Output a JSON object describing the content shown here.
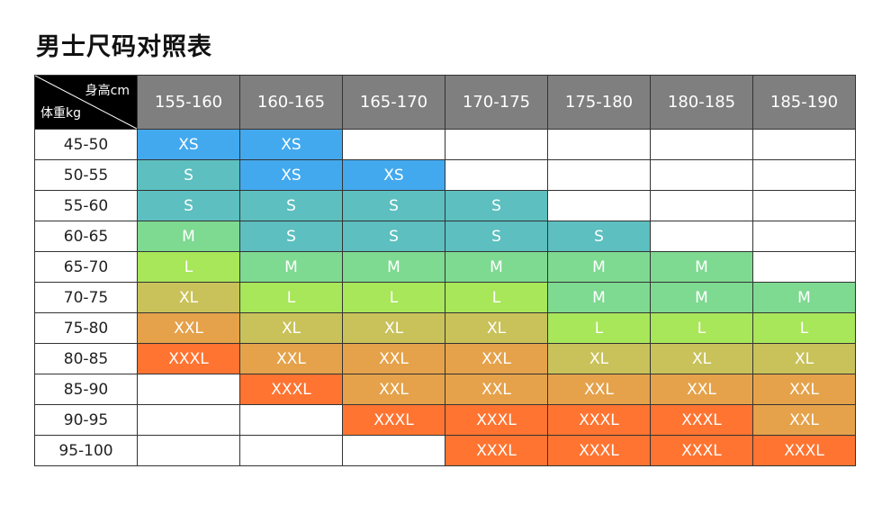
{
  "title": "男士尺码对照表",
  "corner": {
    "height_label": "身高cm",
    "weight_label": "体重kg"
  },
  "heights": [
    "155-160",
    "160-165",
    "165-170",
    "170-175",
    "175-180",
    "180-185",
    "185-190"
  ],
  "colors": {
    "XS": "#43a9ee",
    "S": "#5dbfbf",
    "M": "#7ed991",
    "L": "#a8e65a",
    "XL": "#c9c25a",
    "XXL": "#e5a24a",
    "XXXL": "#ff7431",
    "empty": "#ffffff",
    "header": "#7f7f7f",
    "corner": "#000000"
  },
  "rows": [
    {
      "weight": "45-50",
      "sizes": [
        "XS",
        "XS",
        "",
        "",
        "",
        "",
        ""
      ]
    },
    {
      "weight": "50-55",
      "sizes": [
        "S",
        "XS",
        "XS",
        "",
        "",
        "",
        ""
      ]
    },
    {
      "weight": "55-60",
      "sizes": [
        "S",
        "S",
        "S",
        "S",
        "",
        "",
        ""
      ]
    },
    {
      "weight": "60-65",
      "sizes": [
        "M",
        "S",
        "S",
        "S",
        "S",
        "",
        ""
      ]
    },
    {
      "weight": "65-70",
      "sizes": [
        "L",
        "M",
        "M",
        "M",
        "M",
        "M",
        ""
      ]
    },
    {
      "weight": "70-75",
      "sizes": [
        "XL",
        "L",
        "L",
        "L",
        "M",
        "M",
        "M"
      ]
    },
    {
      "weight": "75-80",
      "sizes": [
        "XXL",
        "XL",
        "XL",
        "XL",
        "L",
        "L",
        "L"
      ]
    },
    {
      "weight": "80-85",
      "sizes": [
        "XXXL",
        "XXL",
        "XXL",
        "XXL",
        "XL",
        "XL",
        "XL"
      ]
    },
    {
      "weight": "85-90",
      "sizes": [
        "",
        "XXXL",
        "XXL",
        "XXL",
        "XXL",
        "XXL",
        "XXL"
      ]
    },
    {
      "weight": "90-95",
      "sizes": [
        "",
        "",
        "XXXL",
        "XXXL",
        "XXXL",
        "XXXL",
        "XXL"
      ]
    },
    {
      "weight": "95-100",
      "sizes": [
        "",
        "",
        "",
        "XXXL",
        "XXXL",
        "XXXL",
        "XXXL"
      ]
    }
  ]
}
